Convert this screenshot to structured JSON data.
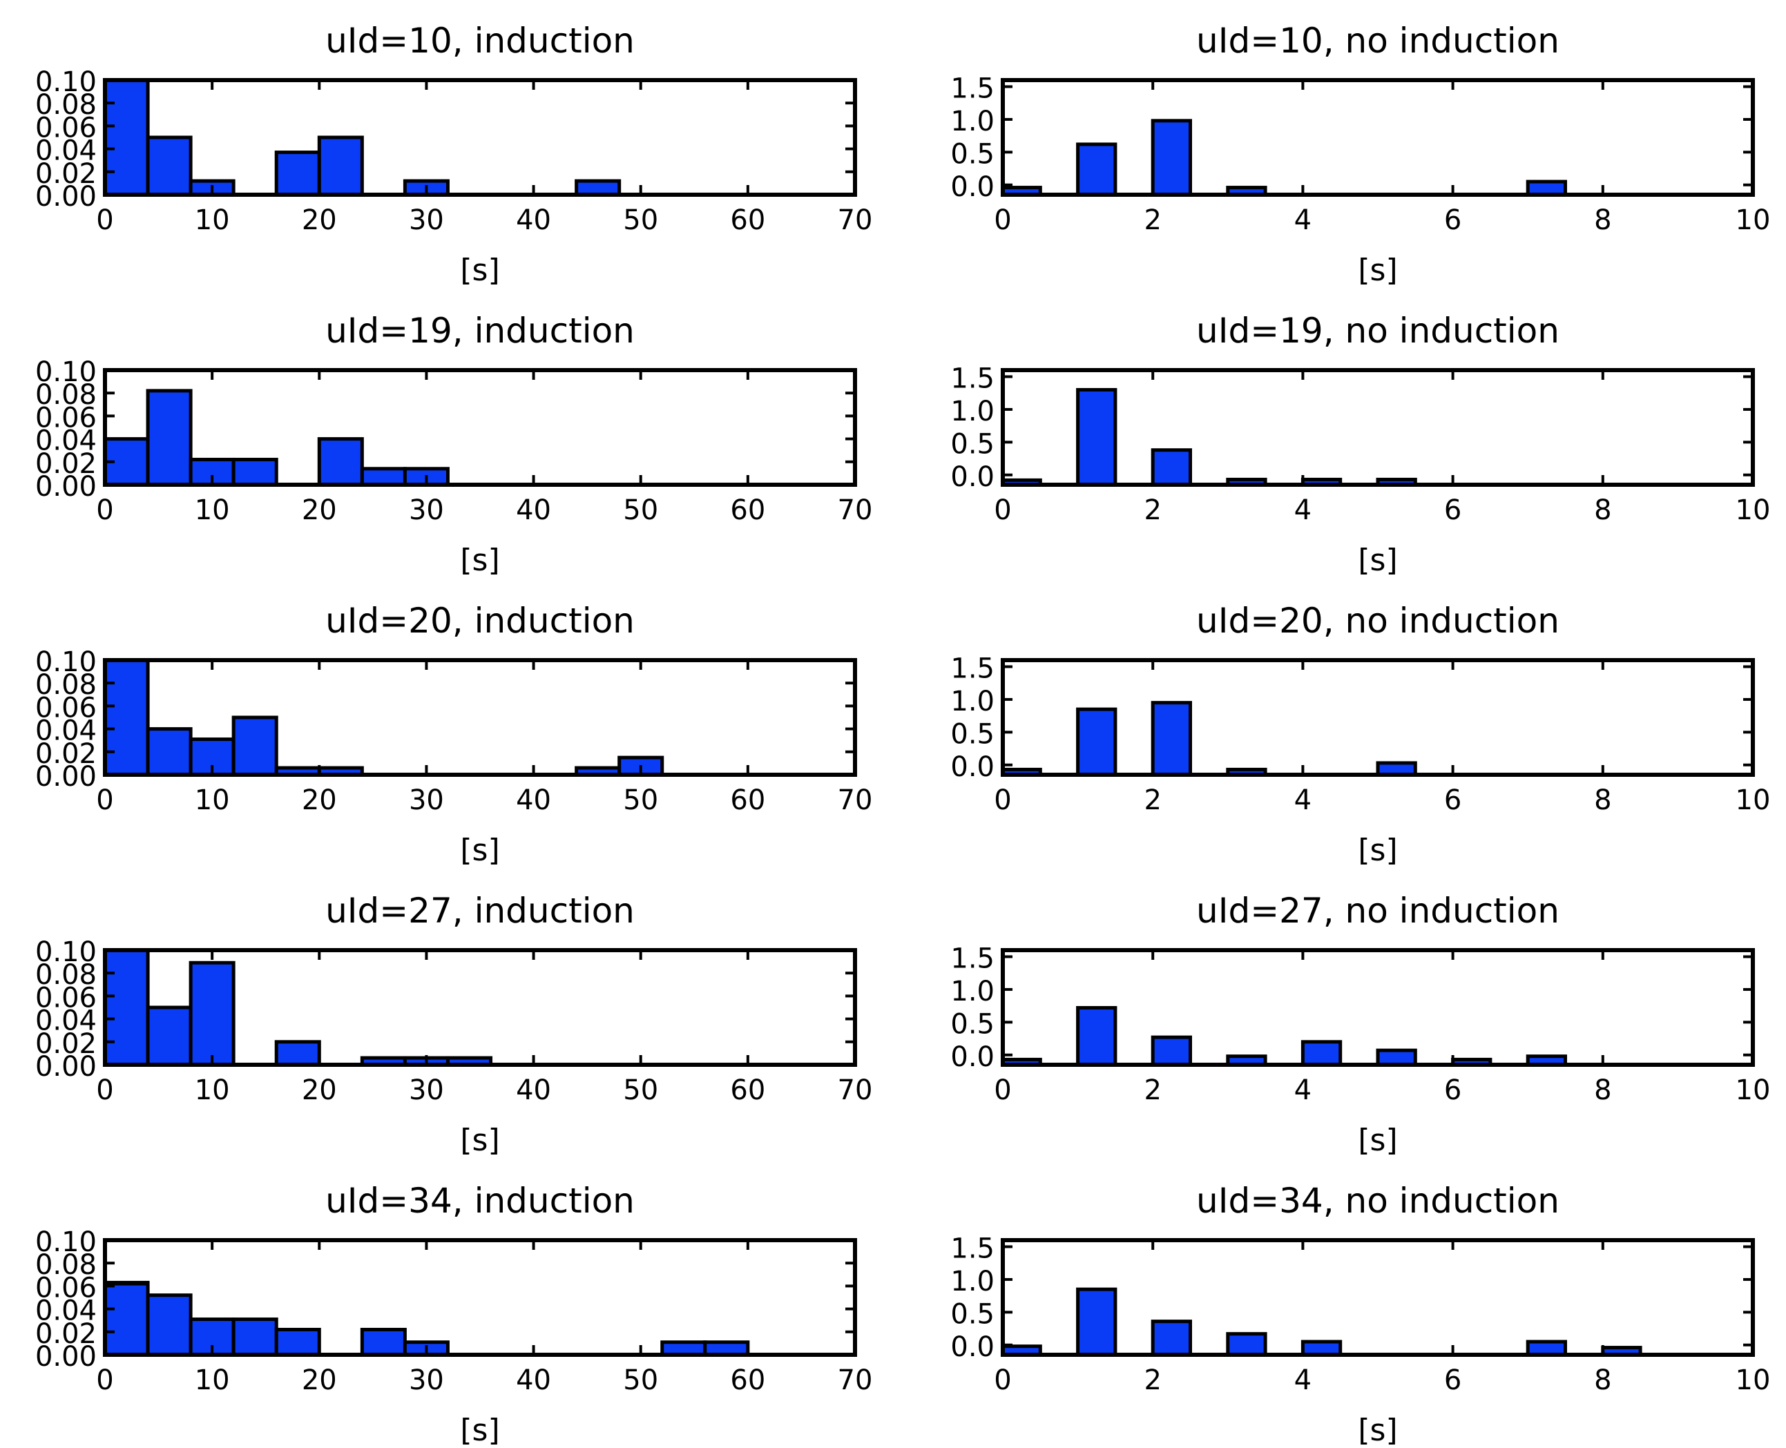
{
  "chart_data": [
    {
      "type": "bar",
      "title": "uId=10, induction",
      "xlabel": "[s]",
      "xlim": [
        0,
        70
      ],
      "ylim": [
        0,
        0.1
      ],
      "xticks": [
        "0",
        "10",
        "20",
        "30",
        "40",
        "50",
        "60",
        "70"
      ],
      "yticks": [
        "0.00",
        "0.02",
        "0.04",
        "0.06",
        "0.08",
        "0.10"
      ],
      "bin_width": 4,
      "bars": [
        {
          "x0": 0,
          "h": 0.102
        },
        {
          "x0": 0,
          "h": 0.1
        },
        {
          "x0": 4,
          "h": 0.05
        },
        {
          "x0": 8,
          "h": 0.012
        },
        {
          "x0": 16,
          "h": 0.037
        },
        {
          "x0": 20,
          "h": 0.05
        },
        {
          "x0": 28,
          "h": 0.012
        },
        {
          "x0": 44,
          "h": 0.012
        }
      ]
    },
    {
      "type": "bar",
      "title": "uId=10, no induction",
      "xlabel": "[s]",
      "xlim": [
        0,
        10
      ],
      "ylim": [
        -0.15,
        1.6
      ],
      "xticks": [
        "0",
        "2",
        "4",
        "6",
        "8",
        "10"
      ],
      "yticks": [
        "0.0",
        "0.5",
        "1.0",
        "1.5"
      ],
      "bin_width": 0.5,
      "bars": [
        {
          "x0": 0,
          "h": -0.04
        },
        {
          "x0": 1,
          "h": 0.62
        },
        {
          "x0": 2,
          "h": 0.98
        },
        {
          "x0": 3,
          "h": -0.04
        },
        {
          "x0": 7,
          "h": 0.05
        }
      ]
    },
    {
      "type": "bar",
      "title": "uId=19, induction",
      "xlabel": "[s]",
      "xlim": [
        0,
        70
      ],
      "ylim": [
        0,
        0.1
      ],
      "xticks": [
        "0",
        "10",
        "20",
        "30",
        "40",
        "50",
        "60",
        "70"
      ],
      "yticks": [
        "0.00",
        "0.02",
        "0.04",
        "0.06",
        "0.08",
        "0.10"
      ],
      "bin_width": 4,
      "bars": [
        {
          "x0": 0,
          "h": 0.04
        },
        {
          "x0": 4,
          "h": 0.082
        },
        {
          "x0": 8,
          "h": 0.022
        },
        {
          "x0": 12,
          "h": 0.022
        },
        {
          "x0": 20,
          "h": 0.04
        },
        {
          "x0": 24,
          "h": 0.014
        },
        {
          "x0": 28,
          "h": 0.014
        }
      ]
    },
    {
      "type": "bar",
      "title": "uId=19, no induction",
      "xlabel": "[s]",
      "xlim": [
        0,
        10
      ],
      "ylim": [
        -0.15,
        1.6
      ],
      "xticks": [
        "0",
        "2",
        "4",
        "6",
        "8",
        "10"
      ],
      "yticks": [
        "0.0",
        "0.5",
        "1.0",
        "1.5"
      ],
      "bin_width": 0.5,
      "bars": [
        {
          "x0": 0,
          "h": -0.08
        },
        {
          "x0": 1,
          "h": 1.3
        },
        {
          "x0": 2,
          "h": 0.38
        },
        {
          "x0": 3,
          "h": -0.07
        },
        {
          "x0": 4,
          "h": -0.07
        },
        {
          "x0": 5,
          "h": -0.07
        }
      ]
    },
    {
      "type": "bar",
      "title": "uId=20, induction",
      "xlabel": "[s]",
      "xlim": [
        0,
        70
      ],
      "ylim": [
        0,
        0.1
      ],
      "xticks": [
        "0",
        "10",
        "20",
        "30",
        "40",
        "50",
        "60",
        "70"
      ],
      "yticks": [
        "0.00",
        "0.02",
        "0.04",
        "0.06",
        "0.08",
        "0.10"
      ],
      "bin_width": 4,
      "bars": [
        {
          "x0": 0,
          "h": 0.102
        },
        {
          "x0": 0,
          "h": 0.1
        },
        {
          "x0": 4,
          "h": 0.04
        },
        {
          "x0": 8,
          "h": 0.031
        },
        {
          "x0": 12,
          "h": 0.05
        },
        {
          "x0": 16,
          "h": 0.006
        },
        {
          "x0": 20,
          "h": 0.006
        },
        {
          "x0": 44,
          "h": 0.006
        },
        {
          "x0": 48,
          "h": 0.015
        }
      ]
    },
    {
      "type": "bar",
      "title": "uId=20, no induction",
      "xlabel": "[s]",
      "xlim": [
        0,
        10
      ],
      "ylim": [
        -0.15,
        1.6
      ],
      "xticks": [
        "0",
        "2",
        "4",
        "6",
        "8",
        "10"
      ],
      "yticks": [
        "0.0",
        "0.5",
        "1.0",
        "1.5"
      ],
      "bin_width": 0.5,
      "bars": [
        {
          "x0": 0,
          "h": -0.07
        },
        {
          "x0": 1,
          "h": 0.85
        },
        {
          "x0": 2,
          "h": 0.95
        },
        {
          "x0": 3,
          "h": -0.07
        },
        {
          "x0": 5,
          "h": 0.03
        }
      ]
    },
    {
      "type": "bar",
      "title": "uId=27, induction",
      "xlabel": "[s]",
      "xlim": [
        0,
        70
      ],
      "ylim": [
        0,
        0.1
      ],
      "xticks": [
        "0",
        "10",
        "20",
        "30",
        "40",
        "50",
        "60",
        "70"
      ],
      "yticks": [
        "0.00",
        "0.02",
        "0.04",
        "0.06",
        "0.08",
        "0.10"
      ],
      "bin_width": 4,
      "bars": [
        {
          "x0": 0,
          "h": 0.101
        },
        {
          "x0": 0,
          "h": 0.1
        },
        {
          "x0": 4,
          "h": 0.05
        },
        {
          "x0": 8,
          "h": 0.089
        },
        {
          "x0": 16,
          "h": 0.02
        },
        {
          "x0": 24,
          "h": 0.006
        },
        {
          "x0": 28,
          "h": 0.006
        },
        {
          "x0": 32,
          "h": 0.006
        }
      ]
    },
    {
      "type": "bar",
      "title": "uId=27, no induction",
      "xlabel": "[s]",
      "xlim": [
        0,
        10
      ],
      "ylim": [
        -0.15,
        1.6
      ],
      "xticks": [
        "0",
        "2",
        "4",
        "6",
        "8",
        "10"
      ],
      "yticks": [
        "0.0",
        "0.5",
        "1.0",
        "1.5"
      ],
      "bin_width": 0.5,
      "bars": [
        {
          "x0": 0,
          "h": -0.07
        },
        {
          "x0": 1,
          "h": 0.72
        },
        {
          "x0": 2,
          "h": 0.27
        },
        {
          "x0": 3,
          "h": -0.02
        },
        {
          "x0": 4,
          "h": 0.2
        },
        {
          "x0": 5,
          "h": 0.07
        },
        {
          "x0": 6,
          "h": -0.07
        },
        {
          "x0": 7,
          "h": -0.02
        }
      ]
    },
    {
      "type": "bar",
      "title": "uId=34, induction",
      "xlabel": "[s]",
      "xlim": [
        0,
        70
      ],
      "ylim": [
        0,
        0.1
      ],
      "xticks": [
        "0",
        "10",
        "20",
        "30",
        "40",
        "50",
        "60",
        "70"
      ],
      "yticks": [
        "0.00",
        "0.02",
        "0.04",
        "0.06",
        "0.08",
        "0.10"
      ],
      "bin_width": 4,
      "bars": [
        {
          "x0": 0,
          "h": 0.063
        },
        {
          "x0": 0,
          "h": 0.062
        },
        {
          "x0": 4,
          "h": 0.052
        },
        {
          "x0": 8,
          "h": 0.031
        },
        {
          "x0": 12,
          "h": 0.031
        },
        {
          "x0": 16,
          "h": 0.022
        },
        {
          "x0": 24,
          "h": 0.022
        },
        {
          "x0": 28,
          "h": 0.011
        },
        {
          "x0": 52,
          "h": 0.011
        },
        {
          "x0": 56,
          "h": 0.011
        }
      ]
    },
    {
      "type": "bar",
      "title": "uId=34, no induction",
      "xlabel": "[s]",
      "xlim": [
        0,
        10
      ],
      "ylim": [
        -0.15,
        1.6
      ],
      "xticks": [
        "0",
        "2",
        "4",
        "6",
        "8",
        "10"
      ],
      "yticks": [
        "0.0",
        "0.5",
        "1.0",
        "1.5"
      ],
      "bin_width": 0.5,
      "bars": [
        {
          "x0": 0,
          "h": -0.02
        },
        {
          "x0": 1,
          "h": 0.85
        },
        {
          "x0": 2,
          "h": 0.36
        },
        {
          "x0": 3,
          "h": 0.17
        },
        {
          "x0": 4,
          "h": 0.05
        },
        {
          "x0": 7,
          "h": 0.05
        },
        {
          "x0": 8,
          "h": -0.04
        }
      ]
    }
  ]
}
